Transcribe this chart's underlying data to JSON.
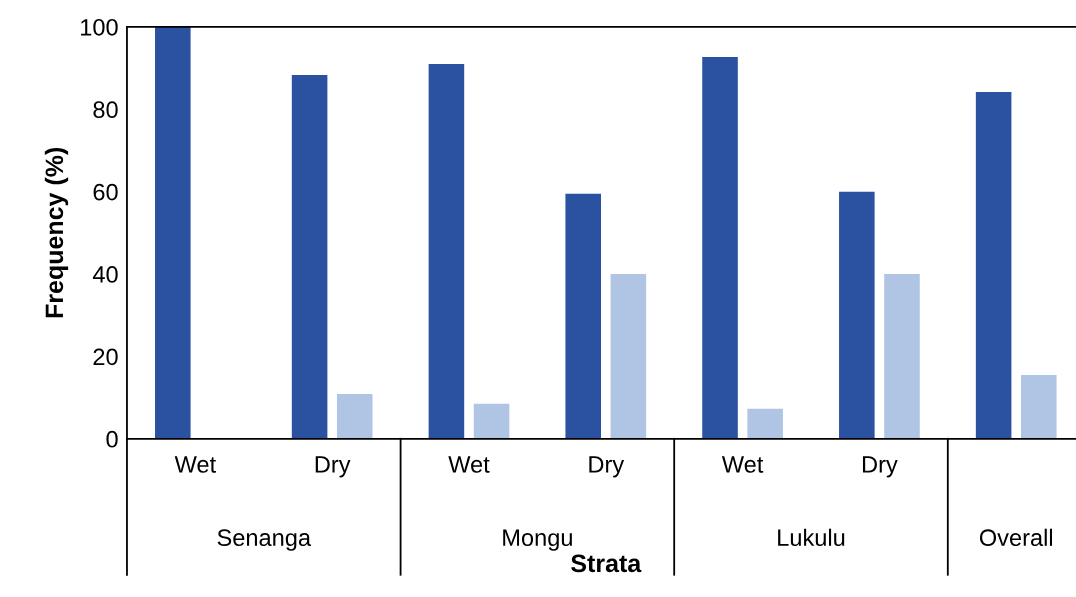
{
  "chart_data": {
    "type": "bar",
    "xlabel": "Strata",
    "ylabel": "Frequency (%)",
    "categories": [
      "Wet",
      "Dry",
      "Wet",
      "Dry",
      "Wet",
      "Dry",
      null
    ],
    "series": [
      {
        "color": "#2a52a0",
        "values": [
          100,
          88.3,
          91.0,
          59.5,
          92.7,
          60.0,
          84.2
        ]
      },
      {
        "color": "#b0c4e4",
        "values": [
          0,
          10.9,
          8.5,
          40.0,
          7.3,
          40.0,
          15.5
        ]
      }
    ],
    "annotations": [
      "Senanga",
      "Mongu",
      "Lukulu",
      "Overall"
    ],
    "ylim": [
      0,
      100
    ],
    "yticks": [
      0,
      20,
      40,
      60,
      80,
      100
    ],
    "grid": false,
    "legend": false
  }
}
